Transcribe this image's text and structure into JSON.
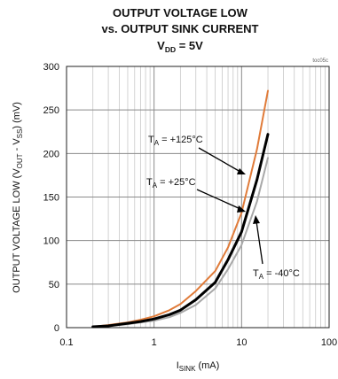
{
  "chart_data": {
    "type": "line",
    "title_lines": [
      "OUTPUT VOLTAGE LOW",
      "vs. OUTPUT SINK CURRENT"
    ],
    "title_vdd": {
      "main": "V",
      "sub": "DD",
      "rest": " = 5V"
    },
    "figure_code": "toc05c",
    "xlabel": {
      "main": "I",
      "sub": "SINK",
      "rest": " (mA)"
    },
    "ylabel": {
      "p1": "OUTPUT VOLTAGE LOW (V",
      "s1": "OUT",
      "p2": " - V",
      "s2": "SS",
      "p3": ") (mV)"
    },
    "x_scale": "log",
    "xlim": [
      0.1,
      100
    ],
    "ylim": [
      0,
      300
    ],
    "x_ticks": [
      0.1,
      1,
      10,
      100
    ],
    "x_tick_labels": [
      "0.1",
      "1",
      "10",
      "100"
    ],
    "y_ticks": [
      0,
      50,
      100,
      150,
      200,
      250,
      300
    ],
    "y_tick_labels": [
      "0",
      "50",
      "100",
      "150",
      "200",
      "250",
      "300"
    ],
    "grid": true,
    "series": [
      {
        "name": "+125°C",
        "color": "#e07b39",
        "x": [
          0.2,
          0.3,
          0.5,
          0.7,
          1,
          1.5,
          2,
          3,
          5,
          7,
          10,
          15,
          20
        ],
        "y": [
          1,
          3,
          6,
          9,
          13,
          20,
          27,
          42,
          65,
          92,
          132,
          205,
          272
        ]
      },
      {
        "name": "+25°C",
        "color": "#000000",
        "x": [
          0.2,
          0.3,
          0.5,
          0.7,
          1,
          1.5,
          2,
          3,
          5,
          7,
          10,
          15,
          20
        ],
        "y": [
          1,
          2,
          5,
          7,
          10,
          15,
          20,
          32,
          52,
          78,
          110,
          170,
          222
        ]
      },
      {
        "name": "-40°C",
        "color": "#a8a8a8",
        "x": [
          0.2,
          0.3,
          0.5,
          0.7,
          1,
          1.5,
          2,
          3,
          5,
          7,
          10,
          15,
          20
        ],
        "y": [
          1,
          2,
          4,
          6,
          8,
          12,
          17,
          26,
          45,
          67,
          95,
          145,
          195
        ]
      }
    ],
    "annotations": [
      {
        "t": "T",
        "sub": "A",
        "rest": " = +125°C"
      },
      {
        "t": "T",
        "sub": "A",
        "rest": " = +25°C"
      },
      {
        "t": "T",
        "sub": "A",
        "rest": " = -40°C"
      }
    ]
  }
}
